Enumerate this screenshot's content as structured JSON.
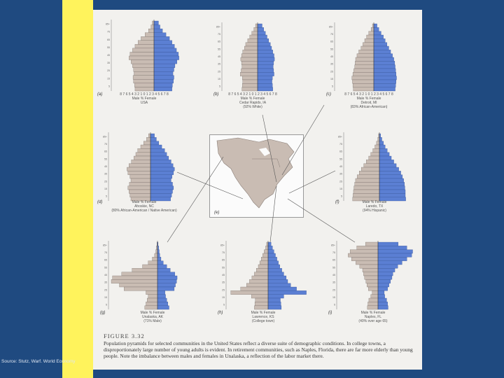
{
  "source_text": "Source: Stutz, Warf. World Economy",
  "figure": {
    "title": "FIGURE 3.32",
    "caption": "Population pyramids for selected communities in the United States reflect a diverse suite of demographic conditions. In college towns, a disproportionately large number of young adults is evident. In retirement communities, such as Naples, Florida, there are far more elderly than young people. Note the imbalance between males and females in Unalaska, a reflection of the labor market there."
  },
  "colors": {
    "background": "#1f4a80",
    "accent_bar": "#fff35c",
    "male": "#c9bcb3",
    "female": "#5b7fd3",
    "page": "#f2f1ee"
  },
  "panels": [
    {
      "letter": "(a)",
      "place": "USA",
      "sub": "",
      "axis_label": "8 7 6 5 4 3 2 1 0 1 2 3 4 5 6 7 8",
      "male": "Male",
      "percent": "%",
      "female": "Female",
      "ages": [
        "85+",
        "80",
        "75",
        "70",
        "65",
        "60",
        "55",
        "50",
        "45",
        "40",
        "35",
        "30",
        "25",
        "20",
        "15",
        "10",
        "5",
        "0"
      ],
      "left": [
        0.35,
        0.6,
        1.1,
        1.8,
        2.6,
        3.2,
        3.8,
        4.3,
        4.8,
        5.0,
        4.6,
        4.3,
        4.1,
        4.0,
        4.2,
        4.1,
        3.9,
        3.8
      ],
      "right": [
        0.9,
        1.2,
        1.7,
        2.4,
        3.1,
        3.6,
        4.1,
        4.5,
        4.9,
        5.0,
        4.6,
        4.2,
        4.0,
        3.8,
        4.0,
        3.9,
        3.7,
        3.6
      ]
    },
    {
      "letter": "(b)",
      "place": "Cedar Rapids, IA",
      "sub": "(92% White)",
      "axis_label": "8 7 6 5 4 3 2 1 0 1 2 3 4 5 6 7 8",
      "male": "Male",
      "percent": "%",
      "female": "Female",
      "ages": [
        "85+",
        "80",
        "75",
        "70",
        "65",
        "60",
        "55",
        "50",
        "45",
        "40",
        "35",
        "30",
        "25",
        "20",
        "15",
        "10",
        "5",
        "0"
      ],
      "left": [
        0.5,
        0.9,
        1.4,
        1.9,
        2.4,
        2.9,
        3.2,
        3.6,
        3.9,
        4.1,
        3.9,
        3.8,
        4.0,
        4.2,
        3.7,
        3.6,
        3.7,
        3.8
      ],
      "right": [
        1.1,
        1.5,
        1.9,
        2.3,
        2.7,
        3.1,
        3.4,
        3.7,
        4.0,
        4.1,
        3.9,
        3.8,
        3.9,
        4.0,
        3.6,
        3.5,
        3.6,
        3.7
      ]
    },
    {
      "letter": "(c)",
      "place": "Detroit, MI",
      "sub": "(83% African-American)",
      "axis_label": "8 7 6 5 4 3 2 1 0 1 2 3 4 5 6 7 8",
      "male": "Male",
      "percent": "%",
      "female": "Female",
      "ages": [
        "85+",
        "80",
        "75",
        "70",
        "65",
        "60",
        "55",
        "50",
        "45",
        "40",
        "35",
        "30",
        "25",
        "20",
        "15",
        "10",
        "5",
        "0"
      ],
      "left": [
        0.3,
        0.6,
        1.1,
        1.6,
        2.0,
        2.4,
        2.8,
        3.3,
        3.7,
        4.0,
        4.1,
        4.2,
        4.4,
        4.6,
        4.8,
        4.7,
        4.6,
        4.5
      ],
      "right": [
        0.7,
        1.1,
        1.6,
        2.1,
        2.5,
        2.9,
        3.3,
        3.7,
        4.1,
        4.4,
        4.6,
        4.7,
        4.8,
        4.9,
        5.0,
        4.9,
        4.8,
        4.7
      ]
    },
    {
      "letter": "(d)",
      "place": "Ahoskie, NC",
      "sub": "(80% African-American / Native American)",
      "axis_label": "8 7 6 5 4 3 2 1 0 1 2 3 4 5 6 7 8",
      "male": "Male",
      "percent": "%",
      "female": "Female",
      "ages": [
        "85+",
        "80",
        "75",
        "70",
        "65",
        "60",
        "55",
        "50",
        "45",
        "40",
        "35",
        "30",
        "25",
        "20",
        "15",
        "10",
        "5",
        "0"
      ],
      "left": [
        0.4,
        0.8,
        1.4,
        2.0,
        2.6,
        3.0,
        3.4,
        3.9,
        4.4,
        4.8,
        4.6,
        4.2,
        4.0,
        4.3,
        4.6,
        4.4,
        4.2,
        4.0
      ],
      "right": [
        0.8,
        1.2,
        1.7,
        2.3,
        2.9,
        3.3,
        3.7,
        4.2,
        4.6,
        4.9,
        4.7,
        4.4,
        4.2,
        4.5,
        4.7,
        4.5,
        4.3,
        4.1
      ]
    },
    {
      "letter": "(f)",
      "place": "Laredo, TX",
      "sub": "(94% Hispanic)",
      "axis_label": "8 7 6 5 4 3 2 1 0 1 2 3 4 5 6 7 8",
      "male": "Male",
      "percent": "%",
      "female": "Female",
      "ages": [
        "85+",
        "80",
        "75",
        "70",
        "65",
        "60",
        "55",
        "50",
        "45",
        "40",
        "35",
        "30",
        "25",
        "20",
        "15",
        "10",
        "5",
        "0"
      ],
      "left": [
        0.2,
        0.4,
        0.7,
        1.1,
        1.6,
        2.1,
        2.6,
        3.2,
        3.8,
        4.4,
        4.9,
        5.4,
        5.8,
        6.0,
        6.2,
        6.3,
        6.4,
        6.5
      ],
      "right": [
        0.3,
        0.6,
        1.0,
        1.4,
        1.9,
        2.4,
        2.9,
        3.5,
        4.1,
        4.7,
        5.2,
        5.6,
        5.9,
        6.1,
        6.2,
        6.3,
        6.3,
        6.4
      ]
    },
    {
      "letter": "(g)",
      "place": "Unalaska, AK",
      "sub": "(71% Male)",
      "axis_label": "8 7 6 5 4 3 2 1 0 1 2 3 4 5 6 7 8",
      "male": "Male",
      "percent": "%",
      "female": "Female",
      "ages": [
        "85+",
        "80",
        "75",
        "70",
        "65",
        "60",
        "55",
        "50",
        "45",
        "40",
        "35",
        "30",
        "25",
        "20",
        "15",
        "10",
        "5",
        "0"
      ],
      "left": [
        0.1,
        0.2,
        0.3,
        0.5,
        0.9,
        1.6,
        2.6,
        4.4,
        6.2,
        7.8,
        8.0,
        6.6,
        5.8,
        2.0,
        1.6,
        1.8,
        2.0,
        2.2
      ],
      "right": [
        0.1,
        0.2,
        0.3,
        0.4,
        0.6,
        1.0,
        1.6,
        2.2,
        3.0,
        3.4,
        3.3,
        3.1,
        2.9,
        1.3,
        1.4,
        1.6,
        1.8,
        2.0
      ]
    },
    {
      "letter": "(h)",
      "place": "Lawrence, KS",
      "sub": "(College town)",
      "axis_label": "8 7 6 5 4 3 2 1 0 1 2 3 4 5 6 7 8",
      "male": "Male",
      "percent": "%",
      "female": "Female",
      "ages": [
        "85+",
        "80",
        "75",
        "70",
        "65",
        "60",
        "55",
        "50",
        "45",
        "40",
        "35",
        "30",
        "25",
        "20",
        "15",
        "10",
        "5",
        "0"
      ],
      "left": [
        0.3,
        0.5,
        0.8,
        1.1,
        1.4,
        1.7,
        2.0,
        2.4,
        2.8,
        3.3,
        3.8,
        4.4,
        5.6,
        7.6,
        3.4,
        2.6,
        2.7,
        2.8
      ],
      "right": [
        0.6,
        0.9,
        1.2,
        1.5,
        1.8,
        2.1,
        2.4,
        2.8,
        3.2,
        3.7,
        4.0,
        4.6,
        5.8,
        7.8,
        3.2,
        2.5,
        2.6,
        2.7
      ]
    },
    {
      "letter": "(i)",
      "place": "Naples, FL",
      "sub": "(40% over age 65)",
      "axis_label": "8 7 6 5 4 3 2 1 0 1 2 3 4 5 6 7 8",
      "male": "Male",
      "percent": "%",
      "female": "Female",
      "ages": [
        "85+",
        "80",
        "75",
        "70",
        "65",
        "60",
        "55",
        "50",
        "45",
        "40",
        "35",
        "30",
        "25",
        "20",
        "15",
        "10",
        "5",
        "0"
      ],
      "left": [
        2.6,
        4.4,
        5.8,
        6.2,
        5.5,
        4.6,
        3.8,
        3.2,
        3.0,
        2.8,
        2.5,
        2.3,
        2.0,
        1.2,
        1.5,
        1.9,
        2.1,
        2.2
      ],
      "right": [
        4.2,
        6.0,
        7.2,
        7.0,
        6.0,
        5.0,
        4.1,
        3.5,
        3.1,
        2.9,
        2.6,
        2.3,
        2.0,
        1.3,
        1.4,
        1.8,
        2.0,
        2.1
      ]
    }
  ],
  "map": {
    "letter": "(e)"
  }
}
